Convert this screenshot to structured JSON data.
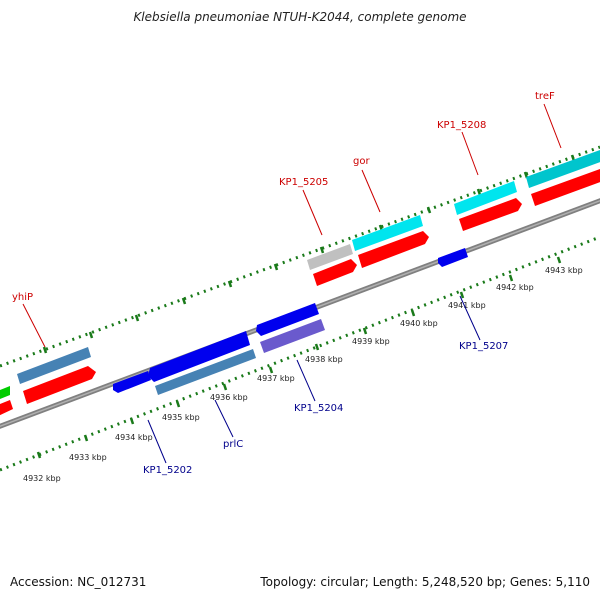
{
  "title": "Klebsiella pneumoniae NTUH-K2044, complete genome",
  "footer": {
    "accession": "Accession: NC_012731",
    "summary": "Topology: circular; Length: 5,248,520 bp; Genes: 5,110"
  },
  "colors": {
    "backbone": "#808080",
    "tick": "#1a7a1a",
    "label_forward": "#cc0000",
    "label_reverse": "#00008b",
    "cds_red": "#ff0000",
    "gene_steelblue": "#4682b4",
    "gene_blue": "#0000ee",
    "gene_cyan": "#00e5ee",
    "gene_teal": "#00c5cd",
    "gene_gray": "#c0c0c0",
    "gene_purple": "#6a5acd",
    "gene_green": "#00cc00"
  },
  "ticks": [
    {
      "label": "4932 kbp"
    },
    {
      "label": "4933 kbp"
    },
    {
      "label": "4934 kbp"
    },
    {
      "label": "4935 kbp"
    },
    {
      "label": "4936 kbp"
    },
    {
      "label": "4937 kbp"
    },
    {
      "label": "4938 kbp"
    },
    {
      "label": "4939 kbp"
    },
    {
      "label": "4940 kbp"
    },
    {
      "label": "4941 kbp"
    },
    {
      "label": "4942 kbp"
    },
    {
      "label": "4943 kbp"
    }
  ],
  "forward_labels": [
    {
      "name": "yhiP"
    },
    {
      "name": "KP1_5205"
    },
    {
      "name": "gor"
    },
    {
      "name": "KP1_5208"
    },
    {
      "name": "treF"
    }
  ],
  "reverse_labels": [
    {
      "name": "KP1_5202"
    },
    {
      "name": "prlC"
    },
    {
      "name": "KP1_5204"
    },
    {
      "name": "KP1_5207"
    }
  ]
}
